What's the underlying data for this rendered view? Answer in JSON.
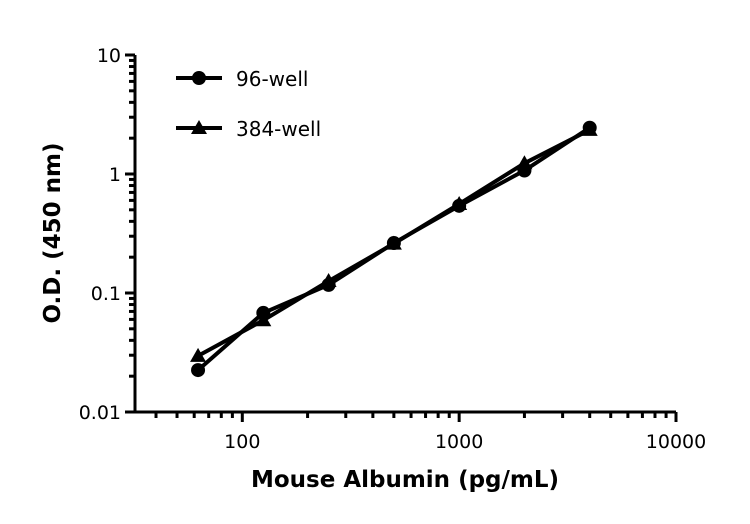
{
  "chart_data": {
    "type": "line",
    "xlabel": "Mouse Albumin (pg/mL)",
    "ylabel": "O.D. (450 nm)",
    "x_scale": "log",
    "y_scale": "log",
    "xlim": [
      32,
      10000
    ],
    "ylim": [
      0.01,
      10
    ],
    "x_ticks": [
      "100",
      "1000",
      "10000"
    ],
    "y_ticks": [
      "0.01",
      "0.1",
      "1",
      "10"
    ],
    "grid": false,
    "legend": "top-left",
    "x": [
      62.5,
      125,
      250,
      500,
      1000,
      2000,
      4000
    ],
    "series": [
      {
        "name": "96-well",
        "marker": "circle",
        "values": [
          0.0225,
          0.068,
          0.117,
          0.263,
          0.54,
          1.07,
          2.45
        ]
      },
      {
        "name": "384-well",
        "marker": "triangle",
        "values": [
          0.0296,
          0.059,
          0.126,
          0.26,
          0.56,
          1.23,
          2.35
        ]
      }
    ],
    "color": "#000000"
  }
}
